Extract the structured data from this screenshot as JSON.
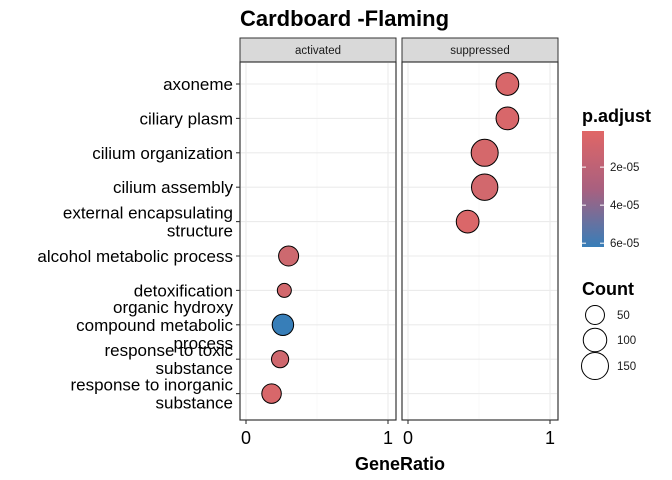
{
  "chart_data": {
    "type": "scatter",
    "title": "Cardboard -Flaming",
    "xlabel": "GeneRatio",
    "ylabel": "",
    "xlim": [
      0,
      1
    ],
    "x_ticks": [
      "0",
      "1"
    ],
    "grid": true,
    "legend_position": "right",
    "facets": [
      "activated",
      "suppressed"
    ],
    "categories": [
      "axoneme",
      "ciliary plasm",
      "cilium organization",
      "cilium assembly",
      "external encapsulating structure",
      "alcohol metabolic process",
      "detoxification",
      "organic hydroxy compound metabolic process",
      "response to toxic substance",
      "response to inorganic substance"
    ],
    "category_lines": [
      [
        "axoneme"
      ],
      [
        "ciliary plasm"
      ],
      [
        "cilium organization"
      ],
      [
        "cilium assembly"
      ],
      [
        "external encapsulating",
        "structure"
      ],
      [
        "alcohol metabolic process"
      ],
      [
        "detoxification"
      ],
      [
        "organic hydroxy",
        "compound metabolic",
        "process"
      ],
      [
        "response to toxic",
        "substance"
      ],
      [
        "response to inorganic",
        "substance"
      ]
    ],
    "points": [
      {
        "facet": "suppressed",
        "term": "axoneme",
        "x": 0.7,
        "count": 90,
        "p_adjust": 4e-06
      },
      {
        "facet": "suppressed",
        "term": "ciliary plasm",
        "x": 0.7,
        "count": 90,
        "p_adjust": 4e-06
      },
      {
        "facet": "suppressed",
        "term": "cilium organization",
        "x": 0.54,
        "count": 150,
        "p_adjust": 5e-06
      },
      {
        "facet": "suppressed",
        "term": "cilium assembly",
        "x": 0.54,
        "count": 140,
        "p_adjust": 6e-06
      },
      {
        "facet": "suppressed",
        "term": "external encapsulating structure",
        "x": 0.42,
        "count": 90,
        "p_adjust": 3e-06
      },
      {
        "facet": "activated",
        "term": "alcohol metabolic process",
        "x": 0.3,
        "count": 60,
        "p_adjust": 8e-06
      },
      {
        "facet": "activated",
        "term": "detoxification",
        "x": 0.27,
        "count": 15,
        "p_adjust": 6e-06
      },
      {
        "facet": "activated",
        "term": "organic hydroxy compound metabolic process",
        "x": 0.26,
        "count": 75,
        "p_adjust": 6.2e-05
      },
      {
        "facet": "activated",
        "term": "response to toxic substance",
        "x": 0.24,
        "count": 35,
        "p_adjust": 7e-06
      },
      {
        "facet": "activated",
        "term": "response to inorganic substance",
        "x": 0.18,
        "count": 55,
        "p_adjust": 4e-06
      }
    ],
    "color_legend": {
      "title": "p.adjust",
      "low_color": "#E06666",
      "high_color": "#377EB8",
      "range": [
        1e-06,
        6.2e-05
      ],
      "tick_values": [
        2e-05,
        4e-05,
        6e-05
      ],
      "tick_labels": [
        "2e-05",
        "4e-05",
        "6e-05"
      ]
    },
    "size_legend": {
      "title": "Count",
      "values": [
        50,
        100,
        150
      ],
      "labels": [
        "50",
        "100",
        "150"
      ]
    }
  }
}
